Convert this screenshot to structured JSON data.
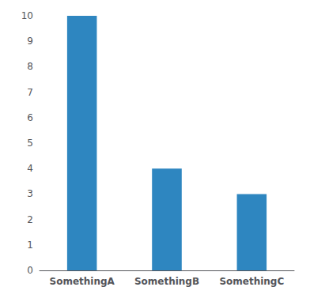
{
  "chart_data": {
    "type": "bar",
    "categories": [
      "SomethingA",
      "SomethingB",
      "SomethingC"
    ],
    "values": [
      10,
      4,
      3
    ],
    "color": "#2e86c0",
    "ylim": [
      0,
      10
    ],
    "yticks": [
      0,
      1,
      2,
      3,
      4,
      5,
      6,
      7,
      8,
      9,
      10
    ],
    "grid": false
  }
}
